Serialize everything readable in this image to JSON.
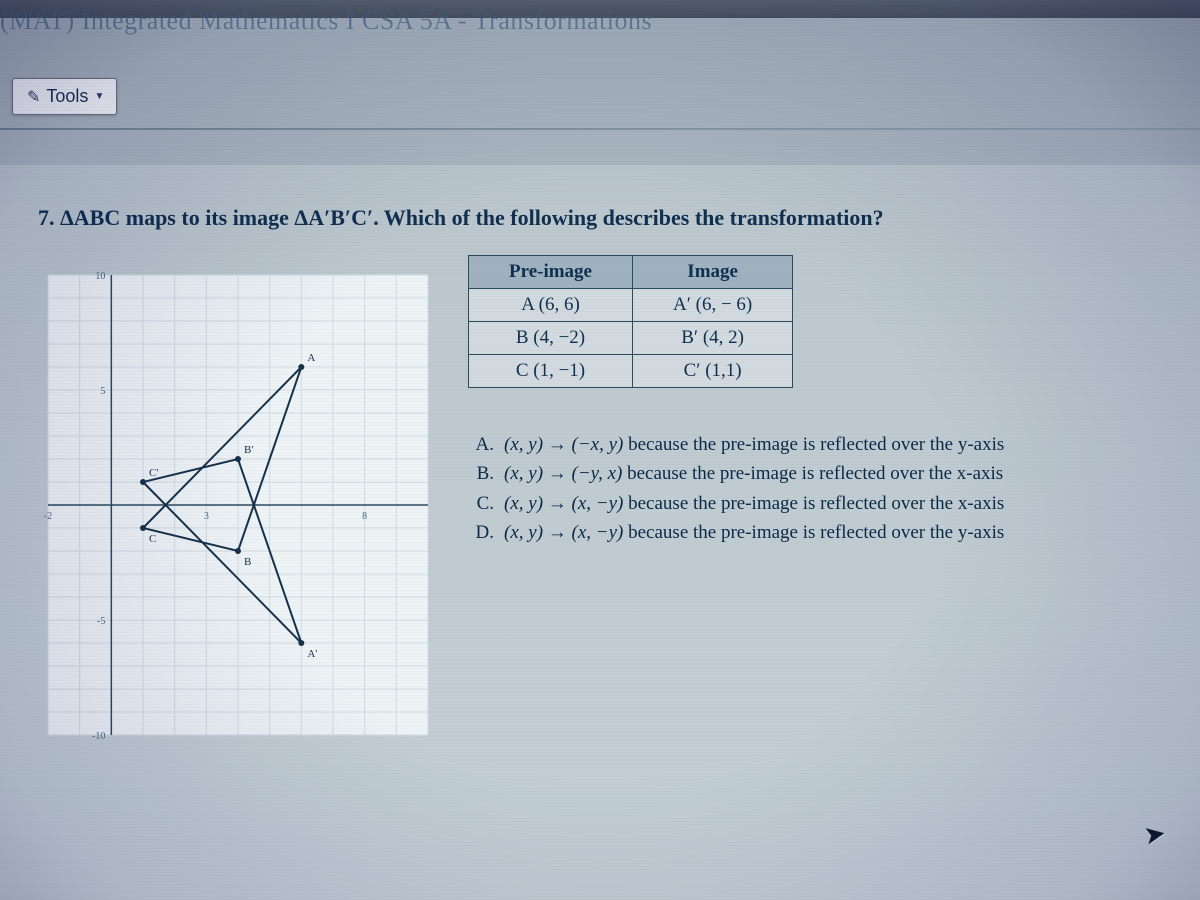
{
  "page_title": "(MAT) Integrated Mathematics I CSA 5A - Transformations",
  "tools_label": "Tools",
  "question_number": "7.",
  "question_text_pre": "ΔABC maps to its image ΔA′B′C′. Which of the following describes the transformation?",
  "table": {
    "headers": [
      "Pre-image",
      "Image"
    ],
    "rows": [
      [
        "A (6, 6)",
        "A′ (6, − 6)"
      ],
      [
        "B (4, −2)",
        "B′ (4, 2)"
      ],
      [
        "C (1, −1)",
        "C′ (1,1)"
      ]
    ],
    "header_bg": "#9fb2c0",
    "border_color": "#2a4a60",
    "text_color": "#103050",
    "fontsize": 19
  },
  "choices": [
    {
      "label": "A.",
      "text": "(x, y) → (−x, y) because the pre-image is reflected over the y-axis"
    },
    {
      "label": "B.",
      "text": "(x, y) → (−y, x) because the pre-image is reflected over the x-axis"
    },
    {
      "label": "C.",
      "text": "(x, y) → (x, −y) because the pre-image is reflected over the x-axis"
    },
    {
      "label": "D.",
      "text": "(x, y) → (x, −y) because the pre-image is reflected over the y-axis"
    }
  ],
  "graph": {
    "type": "scatter-with-triangles",
    "xlim": [
      -2,
      10
    ],
    "ylim": [
      -10,
      10
    ],
    "xtick_step": 5,
    "ytick_step": 5,
    "grid_color": "#d0dce2",
    "axis_color": "#2a4a60",
    "background_color": "#eef3f6",
    "tick_label_color": "#4a6a80",
    "tick_label_fontsize": 10,
    "point_label_fontsize": 11,
    "preimage": {
      "color": "#16324a",
      "stroke_width": 2,
      "points": {
        "A": [
          6,
          6
        ],
        "B": [
          4,
          -2
        ],
        "C": [
          1,
          -1
        ]
      }
    },
    "image": {
      "color": "#16324a",
      "stroke_width": 2,
      "points": {
        "A'": [
          6,
          -6
        ],
        "B'": [
          4,
          2
        ],
        "C'": [
          1,
          1
        ]
      }
    }
  },
  "colors": {
    "page_bg_top": "#5a6570",
    "page_bg_main": "#b0bdc5",
    "title_color": "#3a5a7a",
    "question_color": "#103050",
    "choice_color": "#0a2a48"
  }
}
